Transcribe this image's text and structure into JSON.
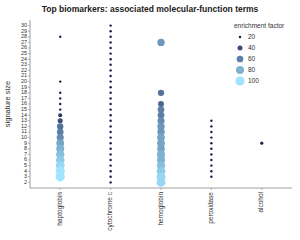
{
  "chart_data": {
    "type": "scatter",
    "title": "Top biomarkers: associated molecular-function terms",
    "ylabel": "signature size",
    "categories": [
      "haptoglobin",
      "cytochrome c",
      "hemoglobin",
      "peroxidase",
      "alcohol"
    ],
    "x": [
      "haptoglobin",
      "haptoglobin",
      "haptoglobin",
      "haptoglobin",
      "haptoglobin",
      "haptoglobin",
      "haptoglobin",
      "haptoglobin",
      "haptoglobin",
      "haptoglobin",
      "haptoglobin",
      "haptoglobin",
      "haptoglobin",
      "haptoglobin",
      "haptoglobin",
      "haptoglobin",
      "haptoglobin",
      "haptoglobin",
      "cytochrome c",
      "cytochrome c",
      "cytochrome c",
      "cytochrome c",
      "cytochrome c",
      "cytochrome c",
      "cytochrome c",
      "cytochrome c",
      "cytochrome c",
      "cytochrome c",
      "cytochrome c",
      "cytochrome c",
      "cytochrome c",
      "cytochrome c",
      "cytochrome c",
      "cytochrome c",
      "cytochrome c",
      "cytochrome c",
      "cytochrome c",
      "cytochrome c",
      "cytochrome c",
      "cytochrome c",
      "cytochrome c",
      "cytochrome c",
      "cytochrome c",
      "cytochrome c",
      "cytochrome c",
      "cytochrome c",
      "cytochrome c",
      "hemoglobin",
      "hemoglobin",
      "hemoglobin",
      "hemoglobin",
      "hemoglobin",
      "hemoglobin",
      "hemoglobin",
      "hemoglobin",
      "hemoglobin",
      "hemoglobin",
      "hemoglobin",
      "hemoglobin",
      "hemoglobin",
      "hemoglobin",
      "hemoglobin",
      "hemoglobin",
      "hemoglobin",
      "peroxidase",
      "peroxidase",
      "peroxidase",
      "peroxidase",
      "peroxidase",
      "peroxidase",
      "peroxidase",
      "peroxidase",
      "peroxidase",
      "peroxidase",
      "peroxidase",
      "alcohol"
    ],
    "y": [
      28,
      20,
      18,
      17,
      16,
      15,
      14,
      13,
      12,
      11,
      10,
      9,
      8,
      7,
      6,
      5,
      4,
      3,
      30,
      29,
      28,
      27,
      26,
      25,
      24,
      23,
      22,
      21,
      20,
      19,
      18,
      17,
      16,
      15,
      14,
      13,
      12,
      11,
      10,
      9,
      8,
      7,
      6,
      5,
      4,
      3,
      2,
      27,
      18,
      16,
      15,
      14,
      13,
      12,
      11,
      10,
      9,
      8,
      7,
      6,
      5,
      4,
      3,
      2,
      13,
      12,
      11,
      10,
      9,
      8,
      7,
      6,
      5,
      4,
      3,
      9
    ],
    "size": [
      20,
      20,
      20,
      20,
      20,
      20,
      30,
      40,
      55,
      60,
      65,
      75,
      80,
      85,
      90,
      95,
      100,
      100,
      20,
      20,
      20,
      20,
      20,
      20,
      20,
      20,
      20,
      20,
      20,
      20,
      20,
      20,
      20,
      20,
      20,
      20,
      20,
      20,
      20,
      20,
      20,
      20,
      20,
      20,
      20,
      20,
      20,
      70,
      55,
      50,
      60,
      60,
      65,
      70,
      70,
      75,
      75,
      75,
      80,
      80,
      85,
      90,
      95,
      95,
      20,
      20,
      20,
      20,
      20,
      20,
      20,
      20,
      20,
      20,
      20,
      25
    ],
    "ylim": [
      1,
      31
    ],
    "yticks": [
      2,
      3,
      4,
      5,
      6,
      7,
      8,
      9,
      10,
      11,
      12,
      13,
      14,
      15,
      16,
      17,
      18,
      19,
      20,
      21,
      22,
      23,
      24,
      25,
      26,
      27,
      28,
      29,
      30
    ],
    "legend": "upper right",
    "legend_title": "enrichment factor",
    "legend_values": [
      20,
      40,
      60,
      80,
      100
    ],
    "grid": false
  }
}
